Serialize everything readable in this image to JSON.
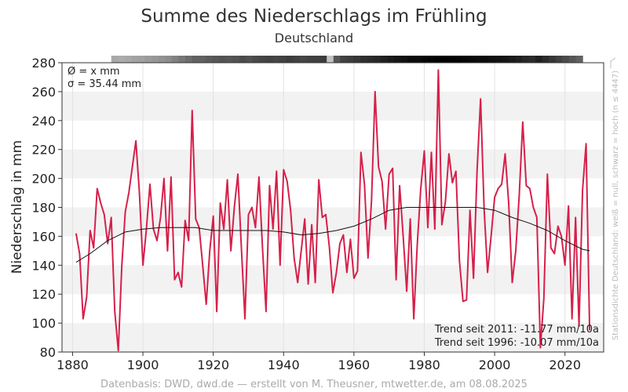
{
  "header": {
    "title": "Summe des Niederschlags im Frühling",
    "subtitle": "Deutschland"
  },
  "stats": {
    "mean": "Ø = x mm",
    "sigma": "σ = 35.44 mm"
  },
  "trends": {
    "t2011": "Trend seit 2011: -11.77 mm/10a",
    "t1996": "Trend seit 1996: -10.07 mm/10a"
  },
  "footer": "Datenbasis: DWD, dwd.de — erstellt von M. Theusner, mtwetter.de, am 08.08.2025",
  "side_note": "Stationsdichte Deutschland: weiß = null, schwarz = hoch (n ≤ 4447)",
  "colors": {
    "series": "#d6204a",
    "smooth": "#111111",
    "band": "#f2f2f2",
    "grid": "#e2e2e2"
  },
  "chart_data": {
    "type": "line",
    "title": "Summe des Niederschlags im Frühling",
    "subtitle": "Deutschland",
    "xlabel": "",
    "ylabel": "Niederschlag in mm",
    "xlim": [
      1877,
      2031
    ],
    "ylim": [
      80,
      280
    ],
    "x_ticks": [
      1880,
      1900,
      1920,
      1940,
      1960,
      1980,
      2000,
      2020
    ],
    "y_ticks": [
      80,
      100,
      120,
      140,
      160,
      180,
      200,
      220,
      240,
      260,
      280
    ],
    "grid": true,
    "series": [
      {
        "values": [
          {
            "x": 1881,
            "y": 162
          },
          {
            "x": 1882,
            "y": 148
          },
          {
            "x": 1883,
            "y": 103
          },
          {
            "x": 1884,
            "y": 118
          },
          {
            "x": 1885,
            "y": 164
          },
          {
            "x": 1886,
            "y": 152
          },
          {
            "x": 1887,
            "y": 193
          },
          {
            "x": 1888,
            "y": 183
          },
          {
            "x": 1889,
            "y": 175
          },
          {
            "x": 1890,
            "y": 155
          },
          {
            "x": 1891,
            "y": 173
          },
          {
            "x": 1892,
            "y": 108
          },
          {
            "x": 1893,
            "y": 81
          },
          {
            "x": 1894,
            "y": 140
          },
          {
            "x": 1895,
            "y": 177
          },
          {
            "x": 1896,
            "y": 190
          },
          {
            "x": 1897,
            "y": 208
          },
          {
            "x": 1898,
            "y": 226
          },
          {
            "x": 1899,
            "y": 190
          },
          {
            "x": 1900,
            "y": 140
          },
          {
            "x": 1901,
            "y": 165
          },
          {
            "x": 1902,
            "y": 196
          },
          {
            "x": 1903,
            "y": 165
          },
          {
            "x": 1904,
            "y": 157
          },
          {
            "x": 1905,
            "y": 173
          },
          {
            "x": 1906,
            "y": 200
          },
          {
            "x": 1907,
            "y": 150
          },
          {
            "x": 1908,
            "y": 201
          },
          {
            "x": 1909,
            "y": 130
          },
          {
            "x": 1910,
            "y": 135
          },
          {
            "x": 1911,
            "y": 125
          },
          {
            "x": 1912,
            "y": 171
          },
          {
            "x": 1913,
            "y": 157
          },
          {
            "x": 1914,
            "y": 247
          },
          {
            "x": 1915,
            "y": 172
          },
          {
            "x": 1916,
            "y": 166
          },
          {
            "x": 1917,
            "y": 140
          },
          {
            "x": 1918,
            "y": 113
          },
          {
            "x": 1919,
            "y": 150
          },
          {
            "x": 1920,
            "y": 174
          },
          {
            "x": 1921,
            "y": 108
          },
          {
            "x": 1922,
            "y": 183
          },
          {
            "x": 1923,
            "y": 165
          },
          {
            "x": 1924,
            "y": 199
          },
          {
            "x": 1925,
            "y": 150
          },
          {
            "x": 1926,
            "y": 180
          },
          {
            "x": 1927,
            "y": 203
          },
          {
            "x": 1928,
            "y": 152
          },
          {
            "x": 1929,
            "y": 103
          },
          {
            "x": 1930,
            "y": 175
          },
          {
            "x": 1931,
            "y": 180
          },
          {
            "x": 1932,
            "y": 166
          },
          {
            "x": 1933,
            "y": 201
          },
          {
            "x": 1934,
            "y": 152
          },
          {
            "x": 1935,
            "y": 108
          },
          {
            "x": 1936,
            "y": 195
          },
          {
            "x": 1937,
            "y": 165
          },
          {
            "x": 1938,
            "y": 205
          },
          {
            "x": 1939,
            "y": 140
          },
          {
            "x": 1940,
            "y": 206
          },
          {
            "x": 1941,
            "y": 198
          },
          {
            "x": 1942,
            "y": 178
          },
          {
            "x": 1943,
            "y": 145
          },
          {
            "x": 1944,
            "y": 128
          },
          {
            "x": 1945,
            "y": 150
          },
          {
            "x": 1946,
            "y": 172
          },
          {
            "x": 1947,
            "y": 127
          },
          {
            "x": 1948,
            "y": 168
          },
          {
            "x": 1949,
            "y": 128
          },
          {
            "x": 1950,
            "y": 199
          },
          {
            "x": 1951,
            "y": 173
          },
          {
            "x": 1952,
            "y": 175
          },
          {
            "x": 1953,
            "y": 153
          },
          {
            "x": 1954,
            "y": 121
          },
          {
            "x": 1955,
            "y": 135
          },
          {
            "x": 1956,
            "y": 155
          },
          {
            "x": 1957,
            "y": 161
          },
          {
            "x": 1958,
            "y": 135
          },
          {
            "x": 1959,
            "y": 158
          },
          {
            "x": 1960,
            "y": 131
          },
          {
            "x": 1961,
            "y": 136
          },
          {
            "x": 1962,
            "y": 218
          },
          {
            "x": 1963,
            "y": 196
          },
          {
            "x": 1964,
            "y": 145
          },
          {
            "x": 1965,
            "y": 185
          },
          {
            "x": 1966,
            "y": 260
          },
          {
            "x": 1967,
            "y": 208
          },
          {
            "x": 1968,
            "y": 198
          },
          {
            "x": 1969,
            "y": 165
          },
          {
            "x": 1970,
            "y": 203
          },
          {
            "x": 1971,
            "y": 207
          },
          {
            "x": 1972,
            "y": 130
          },
          {
            "x": 1973,
            "y": 195
          },
          {
            "x": 1974,
            "y": 160
          },
          {
            "x": 1975,
            "y": 122
          },
          {
            "x": 1976,
            "y": 172
          },
          {
            "x": 1977,
            "y": 103
          },
          {
            "x": 1978,
            "y": 154
          },
          {
            "x": 1979,
            "y": 193
          },
          {
            "x": 1980,
            "y": 219
          },
          {
            "x": 1981,
            "y": 166
          },
          {
            "x": 1982,
            "y": 218
          },
          {
            "x": 1983,
            "y": 165
          },
          {
            "x": 1984,
            "y": 275
          },
          {
            "x": 1985,
            "y": 168
          },
          {
            "x": 1986,
            "y": 184
          },
          {
            "x": 1987,
            "y": 217
          },
          {
            "x": 1988,
            "y": 197
          },
          {
            "x": 1989,
            "y": 205
          },
          {
            "x": 1990,
            "y": 143
          },
          {
            "x": 1991,
            "y": 115
          },
          {
            "x": 1992,
            "y": 116
          },
          {
            "x": 1993,
            "y": 178
          },
          {
            "x": 1994,
            "y": 131
          },
          {
            "x": 1995,
            "y": 205
          },
          {
            "x": 1996,
            "y": 255
          },
          {
            "x": 1997,
            "y": 179
          },
          {
            "x": 1998,
            "y": 135
          },
          {
            "x": 1999,
            "y": 160
          },
          {
            "x": 2000,
            "y": 187
          },
          {
            "x": 2001,
            "y": 193
          },
          {
            "x": 2002,
            "y": 196
          },
          {
            "x": 2003,
            "y": 217
          },
          {
            "x": 2004,
            "y": 183
          },
          {
            "x": 2005,
            "y": 128
          },
          {
            "x": 2006,
            "y": 150
          },
          {
            "x": 2007,
            "y": 189
          },
          {
            "x": 2008,
            "y": 239
          },
          {
            "x": 2009,
            "y": 195
          },
          {
            "x": 2010,
            "y": 193
          },
          {
            "x": 2011,
            "y": 180
          },
          {
            "x": 2012,
            "y": 173
          },
          {
            "x": 2013,
            "y": 83
          },
          {
            "x": 2014,
            "y": 117
          },
          {
            "x": 2015,
            "y": 203
          },
          {
            "x": 2016,
            "y": 152
          },
          {
            "x": 2017,
            "y": 148
          },
          {
            "x": 2018,
            "y": 167
          },
          {
            "x": 2019,
            "y": 160
          },
          {
            "x": 2020,
            "y": 140
          },
          {
            "x": 2021,
            "y": 181
          },
          {
            "x": 2022,
            "y": 103
          },
          {
            "x": 2023,
            "y": 173
          },
          {
            "x": 2024,
            "y": 98
          },
          {
            "x": 2025,
            "y": 192
          },
          {
            "x": 2026,
            "y": 224
          },
          {
            "x": 2027,
            "y": 95
          }
        ]
      },
      {
        "values": [
          {
            "x": 1881,
            "y": 142
          },
          {
            "x": 1885,
            "y": 148
          },
          {
            "x": 1890,
            "y": 157
          },
          {
            "x": 1895,
            "y": 163
          },
          {
            "x": 1900,
            "y": 165
          },
          {
            "x": 1905,
            "y": 166
          },
          {
            "x": 1910,
            "y": 166
          },
          {
            "x": 1915,
            "y": 166
          },
          {
            "x": 1920,
            "y": 164
          },
          {
            "x": 1925,
            "y": 164
          },
          {
            "x": 1930,
            "y": 164
          },
          {
            "x": 1935,
            "y": 164
          },
          {
            "x": 1940,
            "y": 163
          },
          {
            "x": 1945,
            "y": 161
          },
          {
            "x": 1950,
            "y": 162
          },
          {
            "x": 1955,
            "y": 164
          },
          {
            "x": 1960,
            "y": 167
          },
          {
            "x": 1965,
            "y": 172
          },
          {
            "x": 1970,
            "y": 178
          },
          {
            "x": 1975,
            "y": 180
          },
          {
            "x": 1980,
            "y": 180
          },
          {
            "x": 1985,
            "y": 180
          },
          {
            "x": 1990,
            "y": 180
          },
          {
            "x": 1995,
            "y": 180
          },
          {
            "x": 2000,
            "y": 178
          },
          {
            "x": 2005,
            "y": 173
          },
          {
            "x": 2010,
            "y": 169
          },
          {
            "x": 2015,
            "y": 164
          },
          {
            "x": 2020,
            "y": 157
          },
          {
            "x": 2025,
            "y": 151
          },
          {
            "x": 2027,
            "y": 150
          }
        ]
      }
    ],
    "density_strip": [
      0.22,
      0.2,
      0.22,
      0.24,
      0.25,
      0.28,
      0.3,
      0.32,
      0.35,
      0.4,
      0.45,
      0.5,
      0.55,
      0.55,
      0.58,
      0.6,
      0.62,
      0.6,
      0.62,
      0.65,
      0.63,
      0.66,
      0.68,
      0.7,
      0.68,
      0.7,
      0.72,
      0.7,
      0.68,
      0.7,
      0.7,
      0.72,
      0.1,
      0.6,
      0.7,
      0.72,
      0.75,
      0.78,
      0.8,
      0.82,
      0.85,
      0.88,
      0.9,
      0.92,
      0.95,
      0.95,
      0.97,
      0.98,
      0.99,
      1.0,
      0.99,
      0.98,
      0.97,
      0.96,
      0.95,
      0.95,
      0.93,
      0.92,
      0.9,
      0.88,
      0.85,
      0.82,
      0.8,
      0.85,
      0.8,
      0.75,
      0.7,
      0.65,
      0.6,
      0.55
    ],
    "density_range": [
      1891,
      2025
    ]
  }
}
